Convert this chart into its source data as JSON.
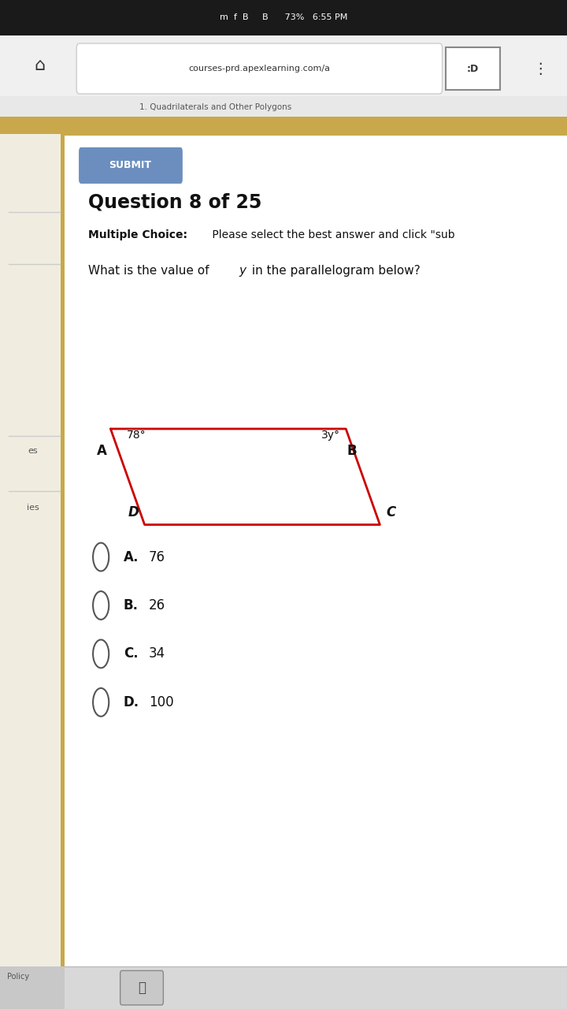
{
  "bg_color": "#f5f5f5",
  "content_bg": "#ffffff",
  "left_bar_color": "#c8a84b",
  "submit_btn_color": "#6c8ebf",
  "submit_btn_text": "SUBMIT",
  "question_title": "Question 8 of 25",
  "mc_label": "Multiple Choice:",
  "mc_text": " Please select the best answer and click \"sub",
  "para_color": "#cc0000",
  "angle_A_text": "78°",
  "angle_B_text": "3y°",
  "choices": [
    {
      "letter": "A.",
      "value": "76"
    },
    {
      "letter": "B.",
      "value": "26"
    },
    {
      "letter": "C.",
      "value": "34"
    },
    {
      "letter": "D.",
      "value": "100"
    }
  ],
  "A": [
    0.195,
    0.575
  ],
  "B": [
    0.61,
    0.575
  ],
  "C": [
    0.67,
    0.48
  ],
  "D": [
    0.255,
    0.48
  ]
}
